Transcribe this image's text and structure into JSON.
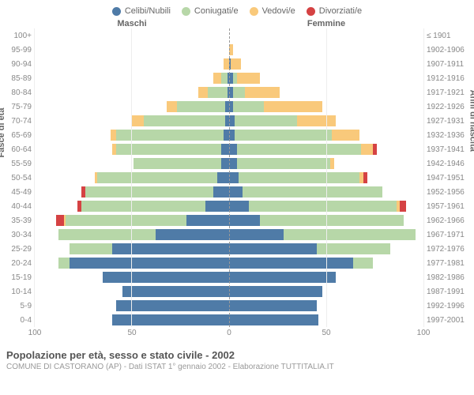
{
  "type": "population-pyramid",
  "legend": [
    {
      "label": "Celibi/Nubili",
      "color": "#4f7ba7"
    },
    {
      "label": "Coniugati/e",
      "color": "#b7d7a8"
    },
    {
      "label": "Vedovi/e",
      "color": "#f9c97b"
    },
    {
      "label": "Divorziati/e",
      "color": "#d54243"
    }
  ],
  "header_male": "Maschi",
  "header_female": "Femmine",
  "y_axis_left_title": "Fasce di età",
  "y_axis_right_title": "Anni di nascita",
  "age_groups": [
    "100+",
    "95-99",
    "90-94",
    "85-89",
    "80-84",
    "75-79",
    "70-74",
    "65-69",
    "60-64",
    "55-59",
    "50-54",
    "45-49",
    "40-44",
    "35-39",
    "30-34",
    "25-29",
    "20-24",
    "15-19",
    "10-14",
    "5-9",
    "0-4"
  ],
  "birth_years": [
    "≤ 1901",
    "1902-1906",
    "1907-1911",
    "1912-1916",
    "1917-1921",
    "1922-1926",
    "1927-1931",
    "1932-1936",
    "1937-1941",
    "1942-1946",
    "1947-1951",
    "1952-1956",
    "1957-1961",
    "1962-1966",
    "1967-1971",
    "1972-1976",
    "1977-1981",
    "1982-1986",
    "1987-1991",
    "1992-1996",
    "1997-2001"
  ],
  "x_axis": {
    "max": 100,
    "ticks": [
      100,
      50,
      0,
      50,
      100
    ]
  },
  "colors": {
    "single": "#4f7ba7",
    "married": "#b7d7a8",
    "widowed": "#f9c97b",
    "divorced": "#d54243",
    "grid": "#eeeeee",
    "centerline": "#999999",
    "background": "#ffffff",
    "text": "#666666"
  },
  "male": [
    {
      "single": 0,
      "married": 0,
      "widowed": 0,
      "divorced": 0
    },
    {
      "single": 0,
      "married": 0,
      "widowed": 0,
      "divorced": 0
    },
    {
      "single": 0,
      "married": 0,
      "widowed": 3,
      "divorced": 0
    },
    {
      "single": 1,
      "married": 3,
      "widowed": 4,
      "divorced": 0
    },
    {
      "single": 1,
      "married": 10,
      "widowed": 5,
      "divorced": 0
    },
    {
      "single": 2,
      "married": 25,
      "widowed": 5,
      "divorced": 0
    },
    {
      "single": 2,
      "married": 42,
      "widowed": 6,
      "divorced": 0
    },
    {
      "single": 3,
      "married": 55,
      "widowed": 3,
      "divorced": 0
    },
    {
      "single": 4,
      "married": 54,
      "widowed": 2,
      "divorced": 0
    },
    {
      "single": 4,
      "married": 45,
      "widowed": 0,
      "divorced": 0
    },
    {
      "single": 6,
      "married": 62,
      "widowed": 1,
      "divorced": 0
    },
    {
      "single": 8,
      "married": 66,
      "widowed": 0,
      "divorced": 2
    },
    {
      "single": 12,
      "married": 64,
      "widowed": 0,
      "divorced": 2
    },
    {
      "single": 22,
      "married": 62,
      "widowed": 1,
      "divorced": 4
    },
    {
      "single": 38,
      "married": 50,
      "widowed": 0,
      "divorced": 0
    },
    {
      "single": 60,
      "married": 22,
      "widowed": 0,
      "divorced": 0
    },
    {
      "single": 82,
      "married": 6,
      "widowed": 0,
      "divorced": 0
    },
    {
      "single": 65,
      "married": 0,
      "widowed": 0,
      "divorced": 0
    },
    {
      "single": 55,
      "married": 0,
      "widowed": 0,
      "divorced": 0
    },
    {
      "single": 58,
      "married": 0,
      "widowed": 0,
      "divorced": 0
    },
    {
      "single": 60,
      "married": 0,
      "widowed": 0,
      "divorced": 0
    }
  ],
  "female": [
    {
      "single": 0,
      "married": 0,
      "widowed": 0,
      "divorced": 0
    },
    {
      "single": 0,
      "married": 0,
      "widowed": 2,
      "divorced": 0
    },
    {
      "single": 1,
      "married": 0,
      "widowed": 5,
      "divorced": 0
    },
    {
      "single": 2,
      "married": 2,
      "widowed": 12,
      "divorced": 0
    },
    {
      "single": 2,
      "married": 6,
      "widowed": 18,
      "divorced": 0
    },
    {
      "single": 2,
      "married": 16,
      "widowed": 30,
      "divorced": 0
    },
    {
      "single": 3,
      "married": 32,
      "widowed": 20,
      "divorced": 0
    },
    {
      "single": 3,
      "married": 50,
      "widowed": 14,
      "divorced": 0
    },
    {
      "single": 4,
      "married": 64,
      "widowed": 6,
      "divorced": 2
    },
    {
      "single": 4,
      "married": 48,
      "widowed": 2,
      "divorced": 0
    },
    {
      "single": 5,
      "married": 62,
      "widowed": 2,
      "divorced": 2
    },
    {
      "single": 7,
      "married": 72,
      "widowed": 0,
      "divorced": 0
    },
    {
      "single": 10,
      "married": 76,
      "widowed": 2,
      "divorced": 3
    },
    {
      "single": 16,
      "married": 74,
      "widowed": 0,
      "divorced": 0
    },
    {
      "single": 28,
      "married": 68,
      "widowed": 0,
      "divorced": 0
    },
    {
      "single": 45,
      "married": 38,
      "widowed": 0,
      "divorced": 0
    },
    {
      "single": 64,
      "married": 10,
      "widowed": 0,
      "divorced": 0
    },
    {
      "single": 55,
      "married": 0,
      "widowed": 0,
      "divorced": 0
    },
    {
      "single": 48,
      "married": 0,
      "widowed": 0,
      "divorced": 0
    },
    {
      "single": 45,
      "married": 0,
      "widowed": 0,
      "divorced": 0
    },
    {
      "single": 46,
      "married": 0,
      "widowed": 0,
      "divorced": 0
    }
  ],
  "title": "Popolazione per età, sesso e stato civile - 2002",
  "subtitle": "COMUNE DI CASTORANO (AP) - Dati ISTAT 1° gennaio 2002 - Elaborazione TUTTITALIA.IT"
}
